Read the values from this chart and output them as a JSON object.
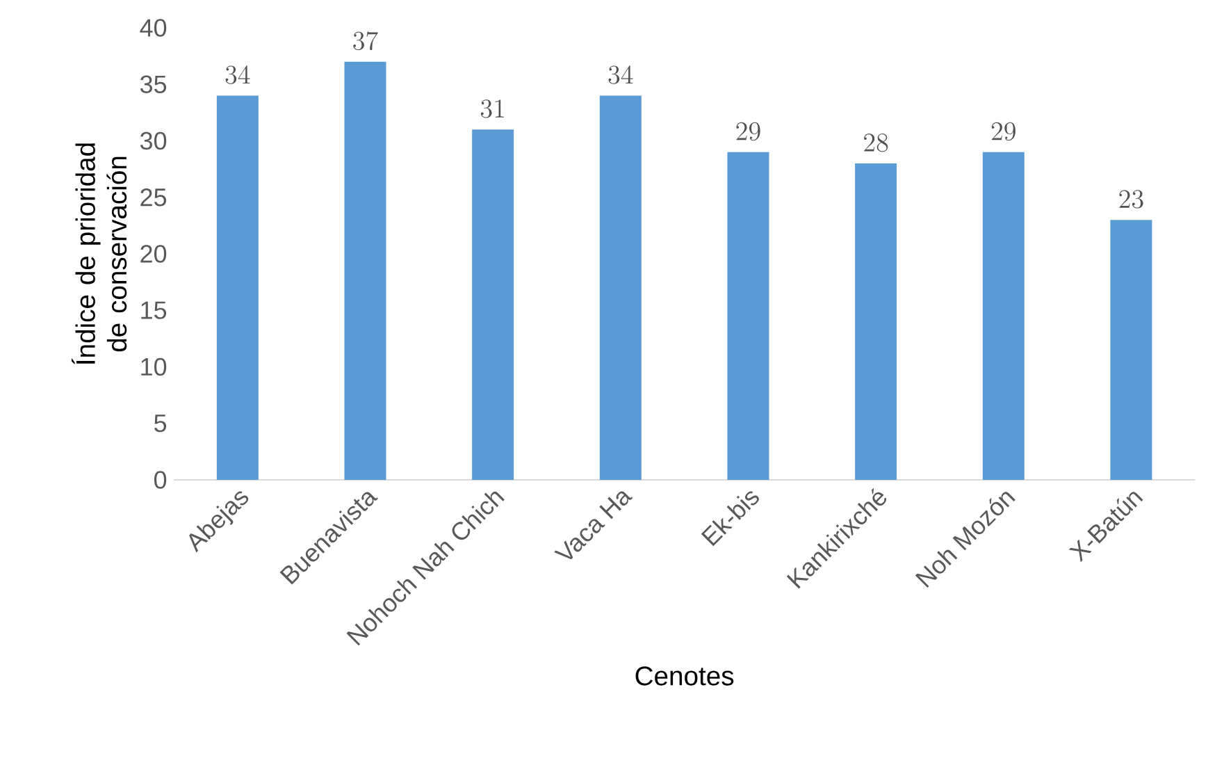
{
  "chart_data": {
    "type": "bar",
    "xlabel": "Cenotes",
    "ylabel": "Índice de prioridad de conservación",
    "categories": [
      "Abejas",
      "Buenavista",
      "Nohoch Nah Chich",
      "Vaca Ha",
      "Ek-bis",
      "Kankirixché",
      "Noh Mozón",
      "X-Batún"
    ],
    "values": [
      34,
      37,
      31,
      34,
      29,
      28,
      29,
      23
    ],
    "color": "#5b9bd5",
    "ylim": [
      0,
      40
    ],
    "yticks": [
      0,
      5,
      10,
      15,
      20,
      25,
      30,
      35,
      40
    ],
    "data_labels": true
  }
}
